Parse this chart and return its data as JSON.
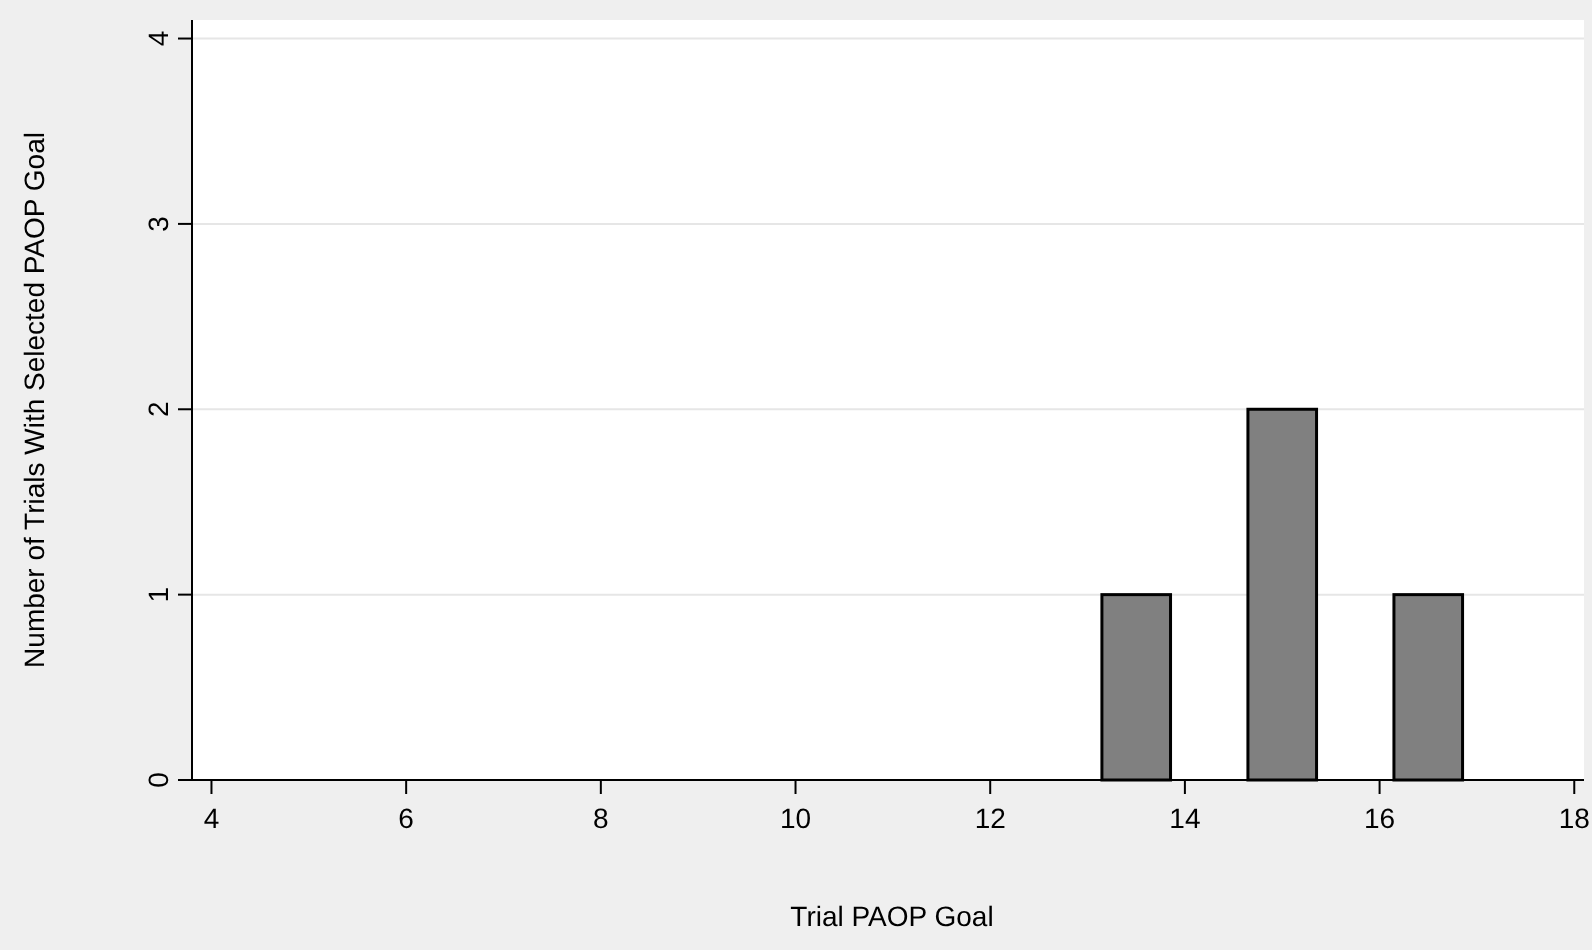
{
  "chart_data": {
    "type": "bar",
    "xlabel": "Trial PAOP Goal",
    "ylabel": "Number of Trials With Selected PAOP Goal",
    "x": [
      13.5,
      15,
      16.5
    ],
    "values": [
      1,
      2,
      1
    ],
    "color": "#808080",
    "xlim": [
      3.8,
      18.1
    ],
    "xticks": [
      4,
      6,
      8,
      10,
      12,
      14,
      16,
      18
    ],
    "ylim": [
      0,
      4.1
    ],
    "yticks": [
      0,
      1,
      2,
      3,
      4
    ],
    "grid": "y"
  }
}
